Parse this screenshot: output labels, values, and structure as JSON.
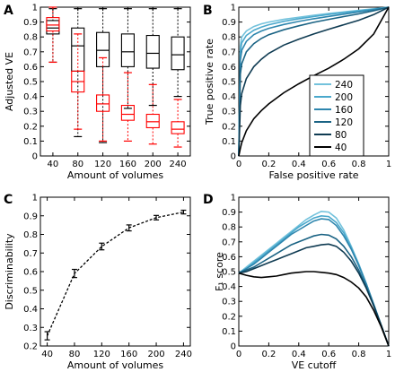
{
  "chart_data": [
    {
      "panel": "A",
      "type": "box",
      "xlabel": "Amount of volumes",
      "ylabel": "Adjusted VE",
      "categories": [
        40,
        80,
        120,
        160,
        200,
        240
      ],
      "xticks": [
        40,
        80,
        120,
        160,
        200,
        240
      ],
      "yticks": [
        0,
        0.1,
        0.2,
        0.3,
        0.4,
        0.5,
        0.6,
        0.7,
        0.8,
        0.9,
        1
      ],
      "ylim": [
        0,
        1
      ],
      "series": [
        {
          "color": "#000000",
          "boxes": [
            {
              "min": 0.63,
              "q1": 0.82,
              "median": 0.86,
              "q3": 0.91,
              "max": 0.99
            },
            {
              "min": 0.13,
              "q1": 0.57,
              "median": 0.74,
              "q3": 0.86,
              "max": 0.99
            },
            {
              "min": 0.09,
              "q1": 0.6,
              "median": 0.71,
              "q3": 0.83,
              "max": 0.99
            },
            {
              "min": 0.32,
              "q1": 0.6,
              "median": 0.7,
              "q3": 0.82,
              "max": 0.99
            },
            {
              "min": 0.34,
              "q1": 0.59,
              "median": 0.69,
              "q3": 0.81,
              "max": 0.99
            },
            {
              "min": 0.4,
              "q1": 0.58,
              "median": 0.68,
              "q3": 0.8,
              "max": 0.99
            }
          ]
        },
        {
          "color": "#ff0000",
          "boxes": [
            {
              "min": 0.63,
              "q1": 0.84,
              "median": 0.88,
              "q3": 0.93,
              "max": 1.0
            },
            {
              "min": 0.18,
              "q1": 0.43,
              "median": 0.5,
              "q3": 0.57,
              "max": 0.82
            },
            {
              "min": 0.1,
              "q1": 0.3,
              "median": 0.35,
              "q3": 0.41,
              "max": 0.66
            },
            {
              "min": 0.1,
              "q1": 0.24,
              "median": 0.28,
              "q3": 0.34,
              "max": 0.56
            },
            {
              "min": 0.08,
              "q1": 0.19,
              "median": 0.23,
              "q3": 0.28,
              "max": 0.48
            },
            {
              "min": 0.06,
              "q1": 0.15,
              "median": 0.18,
              "q3": 0.23,
              "max": 0.38
            }
          ]
        }
      ]
    },
    {
      "panel": "B",
      "type": "line",
      "xlabel": "False positive rate",
      "ylabel": "True positive rate",
      "xlim": [
        0,
        1
      ],
      "ylim": [
        0,
        1
      ],
      "xticks": [
        0,
        0.2,
        0.4,
        0.6,
        0.8,
        1
      ],
      "yticks": [
        0,
        0.1,
        0.2,
        0.3,
        0.4,
        0.5,
        0.6,
        0.7,
        0.8,
        0.9,
        1
      ],
      "legend": "center-right",
      "x": [
        0,
        0.01,
        0.02,
        0.05,
        0.1,
        0.15,
        0.2,
        0.3,
        0.4,
        0.5,
        0.6,
        0.7,
        0.8,
        0.9,
        1
      ],
      "series": [
        {
          "name": "240",
          "color": "#73c2dc",
          "values": [
            0,
            0.74,
            0.8,
            0.84,
            0.87,
            0.888,
            0.9,
            0.918,
            0.932,
            0.945,
            0.957,
            0.968,
            0.979,
            0.989,
            1
          ]
        },
        {
          "name": "200",
          "color": "#4aa8cc",
          "values": [
            0,
            0.7,
            0.76,
            0.81,
            0.845,
            0.866,
            0.882,
            0.905,
            0.922,
            0.937,
            0.951,
            0.963,
            0.975,
            0.987,
            1
          ]
        },
        {
          "name": "160",
          "color": "#2e86ae",
          "values": [
            0,
            0.64,
            0.71,
            0.77,
            0.815,
            0.84,
            0.858,
            0.884,
            0.904,
            0.922,
            0.938,
            0.953,
            0.968,
            0.983,
            1
          ]
        },
        {
          "name": "120",
          "color": "#1a6384",
          "values": [
            0,
            0.55,
            0.62,
            0.7,
            0.755,
            0.79,
            0.815,
            0.848,
            0.875,
            0.898,
            0.918,
            0.937,
            0.955,
            0.976,
            1
          ]
        },
        {
          "name": "80",
          "color": "#0f3b52",
          "values": [
            0,
            0.34,
            0.42,
            0.52,
            0.6,
            0.65,
            0.69,
            0.745,
            0.785,
            0.82,
            0.852,
            0.882,
            0.912,
            0.95,
            1
          ]
        },
        {
          "name": "40",
          "color": "#000000",
          "values": [
            0,
            0.05,
            0.09,
            0.17,
            0.25,
            0.305,
            0.35,
            0.425,
            0.485,
            0.54,
            0.59,
            0.65,
            0.72,
            0.82,
            1
          ]
        }
      ]
    },
    {
      "panel": "C",
      "type": "line",
      "xlabel": "Amount of volumes",
      "ylabel": "Discriminability",
      "xlim": [
        30,
        250
      ],
      "ylim": [
        0.2,
        1
      ],
      "xticks": [
        40,
        80,
        120,
        160,
        200,
        240
      ],
      "yticks": [
        0.2,
        0.3,
        0.4,
        0.5,
        0.6,
        0.7,
        0.8,
        0.9,
        1
      ],
      "series": [
        {
          "color": "#000000",
          "x": [
            40,
            80,
            120,
            160,
            200,
            240
          ],
          "values": [
            0.255,
            0.59,
            0.735,
            0.835,
            0.89,
            0.92
          ],
          "errors": [
            0.022,
            0.022,
            0.018,
            0.016,
            0.012,
            0.01
          ]
        }
      ]
    },
    {
      "panel": "D",
      "type": "line",
      "xlabel": "VE cutoff",
      "ylabel": "F₁ score",
      "xlim": [
        0,
        1
      ],
      "ylim": [
        0,
        1
      ],
      "xticks": [
        0,
        0.2,
        0.4,
        0.6,
        0.8,
        1
      ],
      "yticks": [
        0,
        0.1,
        0.2,
        0.3,
        0.4,
        0.5,
        0.6,
        0.7,
        0.8,
        0.9,
        1
      ],
      "x": [
        0,
        0.05,
        0.1,
        0.15,
        0.2,
        0.25,
        0.3,
        0.35,
        0.4,
        0.45,
        0.5,
        0.55,
        0.6,
        0.65,
        0.7,
        0.75,
        0.8,
        0.85,
        0.9,
        0.95,
        1
      ],
      "series": [
        {
          "name": "240",
          "color": "#73c2dc",
          "values": [
            0.49,
            0.53,
            0.57,
            0.61,
            0.65,
            0.69,
            0.73,
            0.77,
            0.81,
            0.85,
            0.88,
            0.905,
            0.9,
            0.86,
            0.78,
            0.67,
            0.55,
            0.42,
            0.28,
            0.14,
            0
          ]
        },
        {
          "name": "200",
          "color": "#4aa8cc",
          "values": [
            0.49,
            0.52,
            0.56,
            0.6,
            0.64,
            0.68,
            0.72,
            0.76,
            0.8,
            0.83,
            0.86,
            0.875,
            0.87,
            0.83,
            0.76,
            0.66,
            0.55,
            0.42,
            0.28,
            0.14,
            0
          ]
        },
        {
          "name": "160",
          "color": "#2e86ae",
          "values": [
            0.49,
            0.52,
            0.55,
            0.59,
            0.63,
            0.67,
            0.71,
            0.75,
            0.78,
            0.81,
            0.84,
            0.855,
            0.85,
            0.81,
            0.74,
            0.65,
            0.54,
            0.42,
            0.28,
            0.14,
            0
          ]
        },
        {
          "name": "120",
          "color": "#1a6384",
          "values": [
            0.49,
            0.51,
            0.53,
            0.56,
            0.59,
            0.62,
            0.65,
            0.68,
            0.7,
            0.72,
            0.74,
            0.75,
            0.745,
            0.72,
            0.67,
            0.6,
            0.51,
            0.4,
            0.27,
            0.14,
            0
          ]
        },
        {
          "name": "80",
          "color": "#0f3b52",
          "values": [
            0.49,
            0.5,
            0.52,
            0.54,
            0.56,
            0.58,
            0.6,
            0.62,
            0.64,
            0.66,
            0.67,
            0.68,
            0.685,
            0.67,
            0.63,
            0.57,
            0.49,
            0.39,
            0.27,
            0.14,
            0
          ]
        },
        {
          "name": "40",
          "color": "#000000",
          "values": [
            0.49,
            0.475,
            0.465,
            0.46,
            0.465,
            0.47,
            0.48,
            0.49,
            0.495,
            0.5,
            0.5,
            0.495,
            0.49,
            0.48,
            0.46,
            0.43,
            0.39,
            0.33,
            0.24,
            0.13,
            0
          ]
        }
      ]
    }
  ]
}
